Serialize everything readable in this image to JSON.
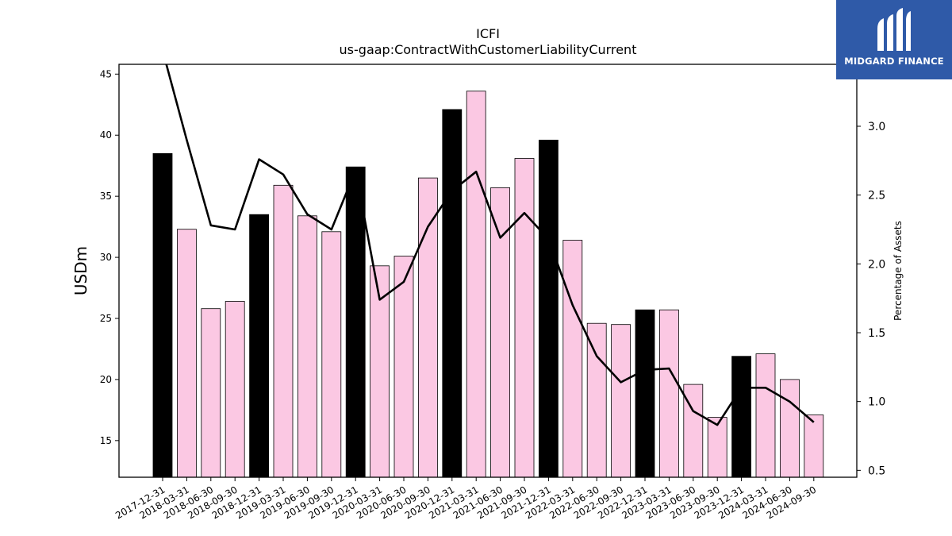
{
  "logo": {
    "text": "MIDGARD FINANCE",
    "icon": "midgard-logo-icon",
    "color": "#2f5aa8"
  },
  "chart_data": {
    "type": "bar",
    "title": "ICFI",
    "subtitle": "us-gaap:ContractWithCustomerLiabilityCurrent",
    "ylabel": "USDm",
    "y2label": "Percentage of Assets",
    "ylim": [
      12,
      45.8
    ],
    "y2lim": [
      0.45,
      3.45
    ],
    "yticks": [
      15,
      20,
      25,
      30,
      35,
      40,
      45
    ],
    "y2ticks": [
      "0.5",
      "1.0",
      "1.5",
      "2.0",
      "2.5",
      "3.0"
    ],
    "categories": [
      "2017-12-31",
      "2018-03-31",
      "2018-06-30",
      "2018-09-30",
      "2018-12-31",
      "2019-03-31",
      "2019-06-30",
      "2019-09-30",
      "2019-12-31",
      "2020-03-31",
      "2020-06-30",
      "2020-09-30",
      "2020-12-31",
      "2021-03-31",
      "2021-06-30",
      "2021-09-30",
      "2021-12-31",
      "2022-03-31",
      "2022-06-30",
      "2022-09-30",
      "2022-12-31",
      "2023-03-31",
      "2023-06-30",
      "2023-09-30",
      "2023-12-31",
      "2024-03-31",
      "2024-06-30",
      "2024-09-30"
    ],
    "values": [
      38.5,
      32.3,
      25.8,
      26.4,
      33.5,
      35.9,
      33.4,
      32.1,
      37.4,
      29.3,
      30.1,
      36.5,
      42.1,
      43.6,
      35.7,
      38.1,
      39.6,
      31.4,
      24.6,
      24.5,
      25.7,
      25.7,
      19.6,
      16.9,
      21.9,
      22.1,
      20.0,
      17.1
    ],
    "highlight": [
      true,
      false,
      false,
      false,
      true,
      false,
      false,
      false,
      true,
      false,
      false,
      false,
      true,
      false,
      false,
      false,
      true,
      false,
      false,
      false,
      true,
      false,
      false,
      false,
      true,
      false,
      false,
      false
    ],
    "line_series": {
      "values": [
        3.55,
        2.9,
        2.28,
        2.25,
        2.76,
        2.65,
        2.36,
        2.25,
        2.68,
        1.74,
        1.87,
        2.27,
        2.53,
        2.67,
        2.19,
        2.37,
        2.18,
        1.7,
        1.33,
        1.14,
        1.23,
        1.24,
        0.93,
        0.83,
        1.1,
        1.1,
        1.0,
        0.85
      ]
    },
    "colors": {
      "highlight_bar": "#000000",
      "bar": "#fbc8e3",
      "line": "#000000"
    }
  }
}
